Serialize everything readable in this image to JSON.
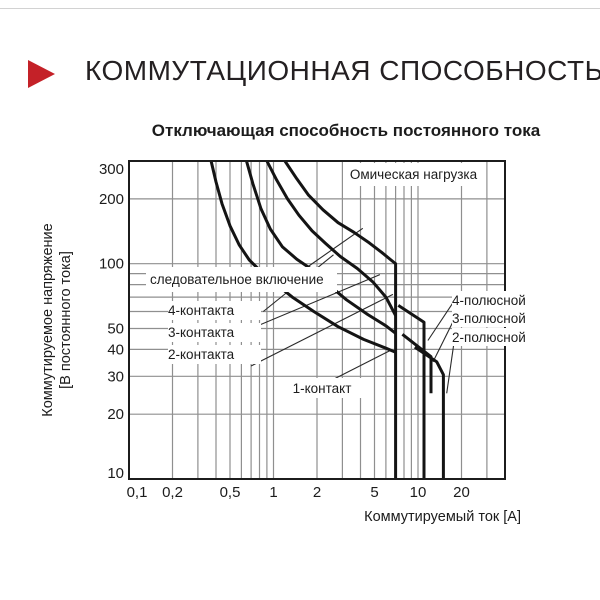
{
  "header": {
    "title": "КОММУТАЦИОННАЯ СПОСОБНОСТЬ"
  },
  "labels": {
    "load_type": "Омическая нагрузка",
    "series_heading": "следовательное включение",
    "contacts4": "4-контакта",
    "contacts3": "3-контакта",
    "contacts2": "2-контакта",
    "contact1": "1-контакт",
    "pole4": "4-полюсной",
    "pole3": "3-полюсной",
    "pole2": "2-полюсной"
  },
  "chart_data": {
    "type": "line",
    "title": "Отключающая способность постоянного тока",
    "xlabel": "Коммутируемый ток [А]",
    "ylabel_line1": "Коммутируемое напряжение",
    "ylabel_line2": "[В постоянного тока]",
    "x_scale": "log",
    "y_scale": "log",
    "xlim": [
      0.1,
      40
    ],
    "ylim": [
      10,
      300
    ],
    "grid": true,
    "x_ticks": [
      {
        "v": 0.1,
        "label": "0,1"
      },
      {
        "v": 0.2,
        "label": "0,2"
      },
      {
        "v": 0.5,
        "label": "0,5"
      },
      {
        "v": 1,
        "label": "1"
      },
      {
        "v": 2,
        "label": "2"
      },
      {
        "v": 5,
        "label": "5"
      },
      {
        "v": 10,
        "label": "10"
      },
      {
        "v": 20,
        "label": "20"
      }
    ],
    "y_ticks": [
      {
        "v": 300,
        "label": "300"
      },
      {
        "v": 200,
        "label": "200"
      },
      {
        "v": 100,
        "label": "100"
      },
      {
        "v": 50,
        "label": "50"
      },
      {
        "v": 40,
        "label": "40"
      },
      {
        "v": 30,
        "label": "30"
      },
      {
        "v": 20,
        "label": "20"
      },
      {
        "v": 10,
        "label": "10"
      }
    ],
    "x_grid": [
      0.2,
      0.3,
      0.4,
      0.5,
      0.6,
      0.7,
      0.8,
      0.9,
      1,
      2,
      3,
      4,
      5,
      6,
      7,
      8,
      9,
      10,
      20,
      30
    ],
    "y_grid": [
      20,
      30,
      40,
      50,
      60,
      70,
      80,
      90,
      100,
      200
    ],
    "series": [
      {
        "id": "contact1",
        "name": "1 контакт",
        "points": [
          [
            0.37,
            300
          ],
          [
            0.4,
            240
          ],
          [
            0.44,
            190
          ],
          [
            0.5,
            150
          ],
          [
            0.58,
            122
          ],
          [
            0.68,
            104
          ],
          [
            0.82,
            92
          ],
          [
            1.05,
            80
          ],
          [
            1.35,
            70
          ],
          [
            1.9,
            60
          ],
          [
            2.8,
            51
          ],
          [
            4.2,
            44.5
          ],
          [
            6.0,
            40.5
          ],
          [
            7.0,
            38.8
          ]
        ]
      },
      {
        "id": "contacts2",
        "name": "2 контакта (последовательное включение)",
        "points": [
          [
            0.65,
            300
          ],
          [
            0.72,
            235
          ],
          [
            0.82,
            180
          ],
          [
            0.95,
            145
          ],
          [
            1.15,
            120
          ],
          [
            1.45,
            105
          ],
          [
            1.8,
            95
          ],
          [
            2.4,
            80
          ],
          [
            3.2,
            68
          ],
          [
            4.5,
            58
          ],
          [
            6.0,
            51.5
          ],
          [
            7.0,
            47.5
          ]
        ]
      },
      {
        "id": "contacts3",
        "name": "3 контакта (последовательное включение)",
        "points": [
          [
            0.9,
            300
          ],
          [
            1.05,
            245
          ],
          [
            1.25,
            200
          ],
          [
            1.5,
            168
          ],
          [
            1.85,
            142
          ],
          [
            2.3,
            124
          ],
          [
            2.9,
            108
          ],
          [
            3.8,
            95
          ],
          [
            4.9,
            82
          ],
          [
            6.0,
            70
          ],
          [
            7.0,
            57.5
          ]
        ]
      },
      {
        "id": "contacts4",
        "name": "4 контакта (последовательное включение), предел тока 7 А",
        "points": [
          [
            1.2,
            300
          ],
          [
            1.45,
            248
          ],
          [
            1.75,
            208
          ],
          [
            2.2,
            178
          ],
          [
            2.8,
            155
          ],
          [
            3.6,
            140
          ],
          [
            4.6,
            125
          ],
          [
            5.6,
            113
          ],
          [
            6.5,
            104
          ],
          [
            7.0,
            100
          ],
          [
            7.0,
            10
          ]
        ]
      },
      {
        "id": "pole4",
        "name": "4-полюсной",
        "points": [
          [
            7.3,
            64
          ],
          [
            11,
            53.5
          ],
          [
            11,
            10
          ]
        ]
      },
      {
        "id": "pole3",
        "name": "3-полюсной",
        "points": [
          [
            7.8,
            47
          ],
          [
            12.3,
            37
          ],
          [
            12.3,
            25
          ]
        ]
      },
      {
        "id": "pole2",
        "name": "2-полюсной",
        "points": [
          [
            9.5,
            41
          ],
          [
            13.5,
            35
          ],
          [
            15,
            30.5
          ],
          [
            15,
            10
          ]
        ]
      }
    ],
    "leaders": [
      {
        "from": [
          1.55,
          92
        ],
        "to": [
          4.15,
          146
        ]
      },
      {
        "from": [
          0.85,
          60
        ],
        "to": [
          2.6,
          110
        ]
      },
      {
        "from": [
          0.7,
          50
        ],
        "to": [
          5.45,
          89
        ]
      },
      {
        "from": [
          0.7,
          33.5
        ],
        "to": [
          6.7,
          72
        ]
      },
      {
        "from": [
          2.1,
          27
        ],
        "to": [
          6.4,
          39.5
        ]
      },
      {
        "from": [
          18,
          68
        ],
        "to": [
          11.7,
          44
        ]
      },
      {
        "from": [
          18,
          56
        ],
        "to": [
          12.7,
          35
        ]
      },
      {
        "from": [
          18,
          46
        ],
        "to": [
          15.8,
          25
        ]
      }
    ],
    "colors": {
      "curve": "#141414",
      "grid": "#8f8f8f",
      "frame": "#1c1c1c",
      "accent_red": "#c42128"
    }
  }
}
